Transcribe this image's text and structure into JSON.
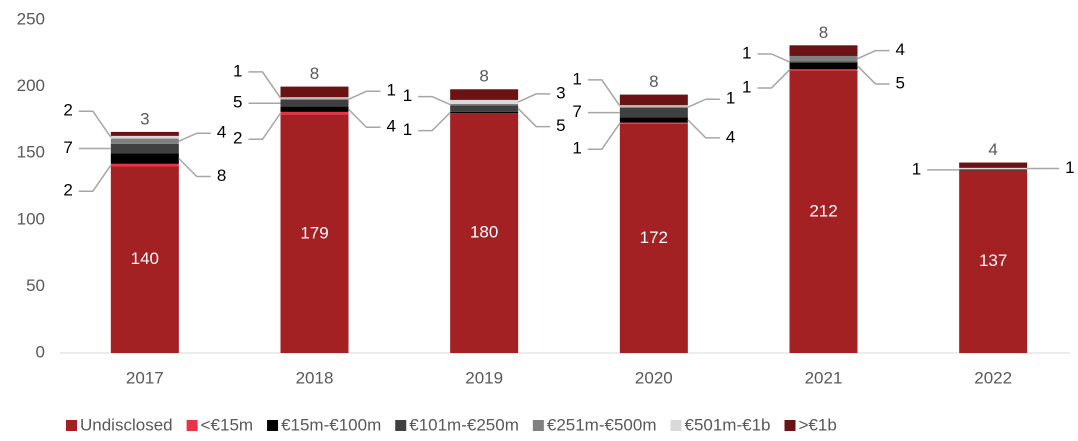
{
  "chart_data": {
    "type": "stacked_bar",
    "categories": [
      "2017",
      "2018",
      "2019",
      "2020",
      "2021",
      "2022"
    ],
    "series": [
      {
        "name": "Undisclosed",
        "color": "#a32023",
        "values": [
          140,
          179,
          180,
          172,
          212,
          137
        ]
      },
      {
        "name": "<€15m",
        "color": "#e8334a",
        "values": [
          2,
          2,
          null,
          1,
          1,
          null
        ]
      },
      {
        "name": "€15m-€100m",
        "color": "#000000",
        "values": [
          8,
          4,
          1,
          4,
          5,
          null
        ]
      },
      {
        "name": "€101m-€250m",
        "color": "#404040",
        "values": [
          7,
          5,
          5,
          7,
          1,
          1
        ]
      },
      {
        "name": "€251m-€500m",
        "color": "#808080",
        "values": [
          4,
          1,
          1,
          1,
          4,
          null
        ]
      },
      {
        "name": "€501m-€1b",
        "color": "#d9d9d9",
        "values": [
          2,
          1,
          3,
          1,
          null,
          1
        ]
      },
      {
        "name": ">€1b",
        "color": "#6b1214",
        "values": [
          3,
          8,
          8,
          8,
          8,
          4
        ]
      }
    ],
    "ylim": [
      0,
      250
    ],
    "yticks": [
      0,
      50,
      100,
      150,
      200,
      250
    ],
    "legend": "bottom"
  }
}
